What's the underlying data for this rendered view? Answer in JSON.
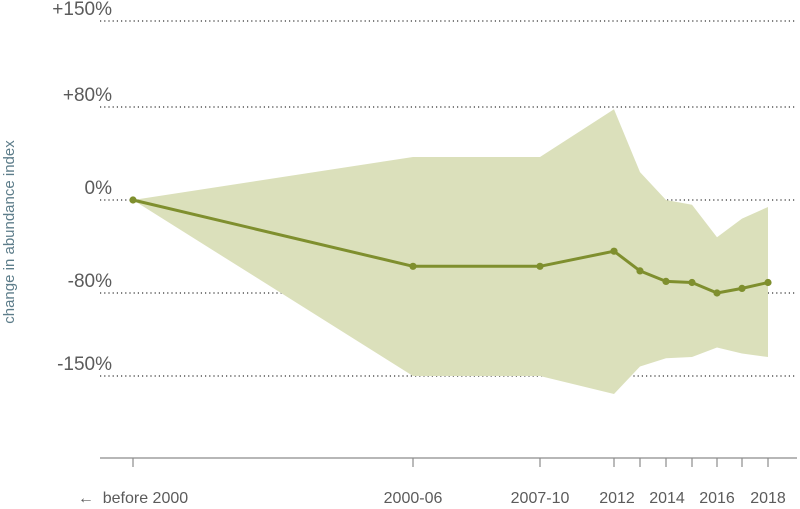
{
  "chart_data": {
    "type": "line",
    "ylabel": "change in abundance index",
    "y_ticks": [
      {
        "value": 150,
        "label": "+150%"
      },
      {
        "value": 80,
        "label": "+80%"
      },
      {
        "value": 0,
        "label": "0%"
      },
      {
        "value": -80,
        "label": "-80%"
      },
      {
        "value": -150,
        "label": "-150%"
      }
    ],
    "x_ticks": [
      "←  before 2000",
      "2000-06",
      "2007-10",
      "2012",
      "2014",
      "2016",
      "2018"
    ],
    "x_tick_marks": [
      "before 2000",
      "2000-06",
      "2007-10",
      "2012",
      "2013",
      "2014",
      "2015",
      "2016",
      "2017",
      "2018"
    ],
    "categories": [
      "before 2000",
      "2000-06",
      "2007-10",
      "2012",
      "2013",
      "2014",
      "2015",
      "2016",
      "2017",
      "2018"
    ],
    "series": [
      {
        "values": [
          0,
          -57,
          -57,
          -44,
          -61,
          -70,
          -71,
          -80,
          -76,
          -71
        ],
        "lower": [
          0,
          -150,
          -150,
          -165,
          -142,
          -135,
          -134,
          -126,
          -131,
          -134
        ],
        "upper": [
          0,
          37,
          37,
          78,
          24,
          0,
          -4,
          -32,
          -16,
          -6
        ]
      }
    ],
    "ylim": [
      -150,
      150
    ],
    "grid": "dotted horizontal",
    "colors": {
      "line": "#7f8f2e",
      "band": "#dbe0bb",
      "grid": "#333333",
      "axis": "#8c8c8c"
    }
  }
}
